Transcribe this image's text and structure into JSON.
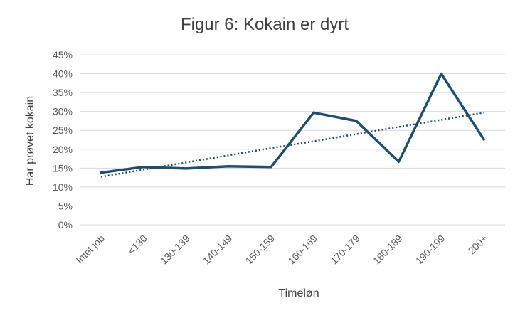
{
  "chart_data": {
    "type": "line",
    "title": "Figur 6: Kokain er dyrt",
    "xlabel": "Timeløn",
    "ylabel": "Har prøvet kokain",
    "categories": [
      "Intet job",
      "<130",
      "130-139",
      "140-149",
      "150-159",
      "160-169",
      "170-179",
      "180-189",
      "190-199",
      "200+"
    ],
    "series": [
      {
        "values": [
          13.8,
          15.3,
          14.9,
          15.5,
          15.3,
          29.7,
          27.5,
          16.7,
          40.0,
          22.6
        ],
        "color": "#1f4e6e",
        "style": "solid"
      },
      {
        "values": [
          12.7,
          14.6,
          16.5,
          18.4,
          20.3,
          22.1,
          24.0,
          25.9,
          27.8,
          29.7
        ],
        "color": "#1f4e6e",
        "style": "dotted",
        "kind": "linear-trendline"
      }
    ],
    "ylim": [
      0,
      45
    ],
    "yticks": [
      "0%",
      "5%",
      "10%",
      "15%",
      "20%",
      "25%",
      "30%",
      "35%",
      "40%",
      "45%"
    ],
    "ytick_values": [
      0,
      5,
      10,
      15,
      20,
      25,
      30,
      35,
      40,
      45
    ],
    "grid": "horizontal",
    "legend": "none"
  }
}
